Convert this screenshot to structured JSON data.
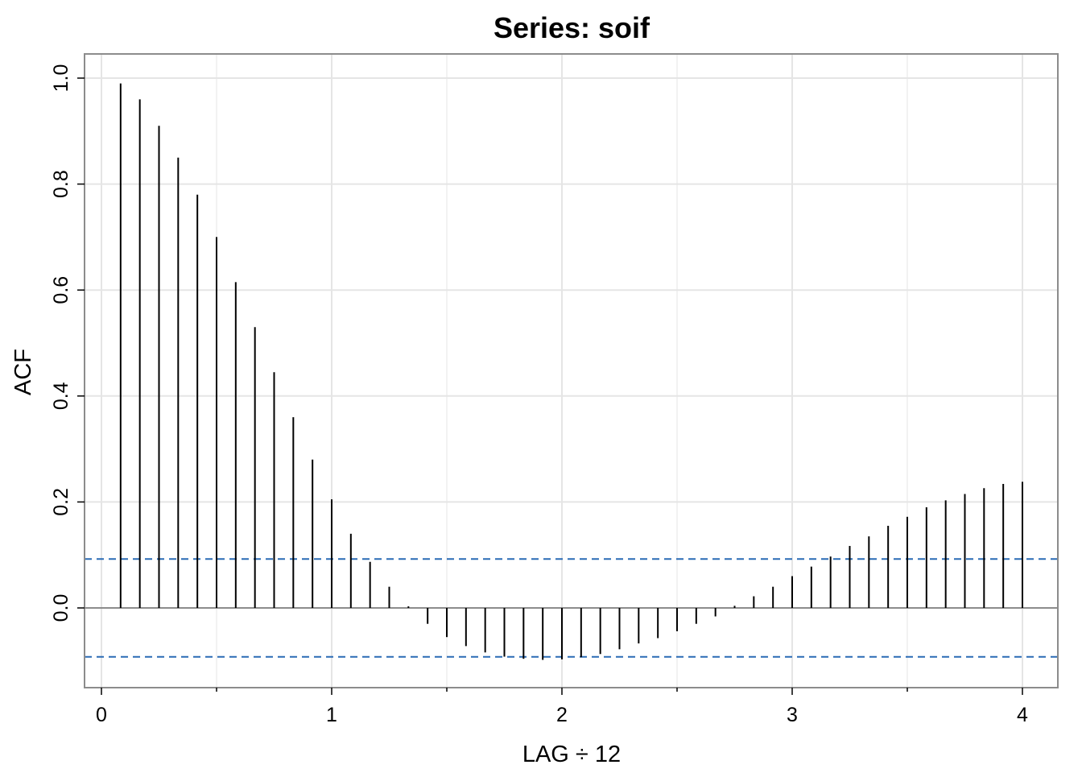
{
  "chart_data": {
    "type": "bar",
    "title": "Series:  soif",
    "xlabel": "LAG ÷ 12",
    "ylabel": "ACF",
    "xlim": [
      0,
      4
    ],
    "ylim": [
      -0.15,
      1.03
    ],
    "x_ticks": [
      "0",
      "1",
      "2",
      "3",
      "4"
    ],
    "y_ticks": [
      "0.0",
      "0.2",
      "0.4",
      "0.6",
      "0.8",
      "1.0"
    ],
    "grid": true,
    "confidence_bound": 0.0924,
    "colors": {
      "bars": "#000000",
      "grid": "#e5e5e5",
      "zero_line": "#8c8c8c",
      "bounds": "#2a6bb5",
      "frame": "#8c8c8c"
    },
    "lags": [
      0.0833,
      0.1667,
      0.25,
      0.3333,
      0.4167,
      0.5,
      0.5833,
      0.6667,
      0.75,
      0.8333,
      0.9167,
      1.0,
      1.0833,
      1.1667,
      1.25,
      1.3333,
      1.4167,
      1.5,
      1.5833,
      1.6667,
      1.75,
      1.8333,
      1.9167,
      2.0,
      2.0833,
      2.1667,
      2.25,
      2.3333,
      2.4167,
      2.5,
      2.5833,
      2.6667,
      2.75,
      2.8333,
      2.9167,
      3.0,
      3.0833,
      3.1667,
      3.25,
      3.3333,
      3.4167,
      3.5,
      3.5833,
      3.6667,
      3.75,
      3.8333,
      3.9167,
      4.0
    ],
    "values": [
      0.99,
      0.96,
      0.91,
      0.85,
      0.78,
      0.7,
      0.615,
      0.53,
      0.445,
      0.36,
      0.28,
      0.205,
      0.14,
      0.087,
      0.04,
      0.003,
      -0.03,
      -0.055,
      -0.072,
      -0.084,
      -0.092,
      -0.096,
      -0.098,
      -0.097,
      -0.093,
      -0.087,
      -0.078,
      -0.067,
      -0.057,
      -0.044,
      -0.03,
      -0.016,
      0.004,
      0.022,
      0.04,
      0.06,
      0.078,
      0.097,
      0.117,
      0.135,
      0.155,
      0.172,
      0.19,
      0.203,
      0.215,
      0.226,
      0.234,
      0.238
    ]
  }
}
